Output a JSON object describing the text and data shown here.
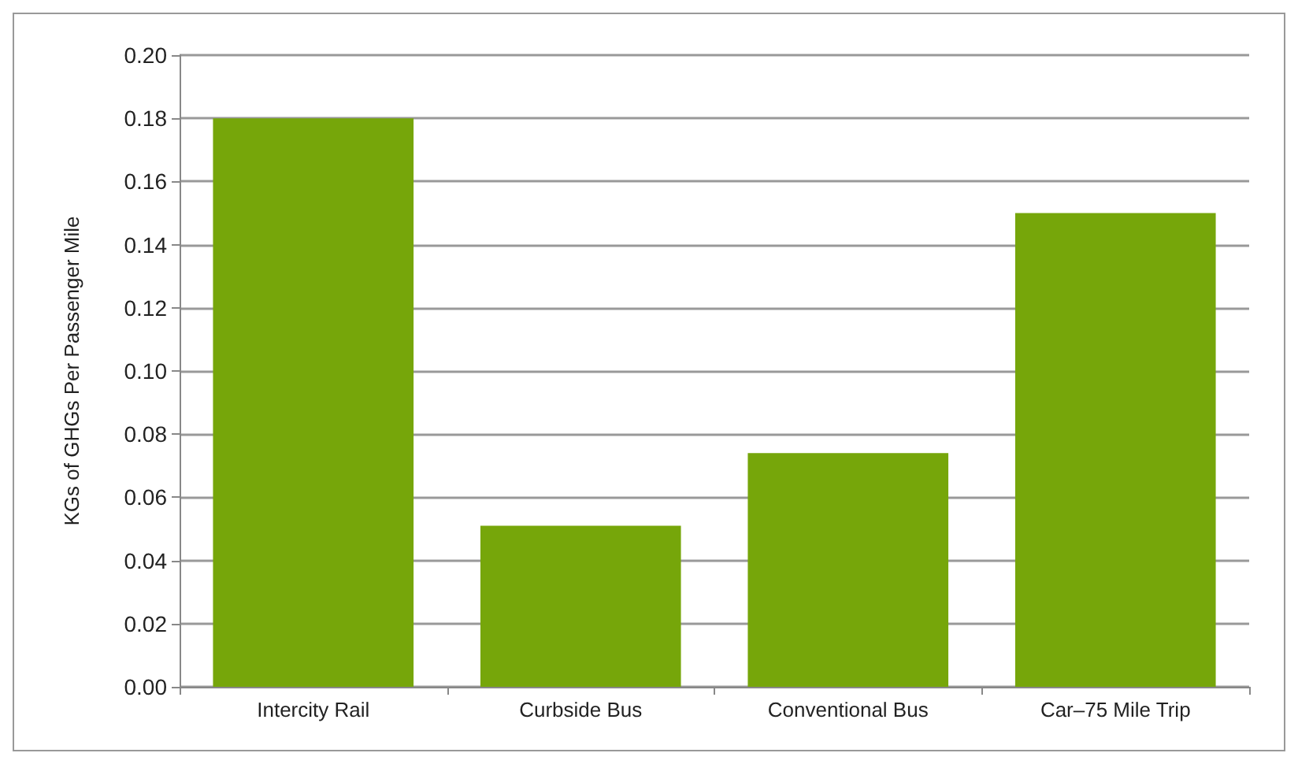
{
  "chart_data": {
    "type": "bar",
    "ylabel": "KGs of GHGs Per Passenger Mile",
    "categories": [
      "Intercity Rail",
      "Curbside Bus",
      "Conventional Bus",
      "Car–75 Mile Trip"
    ],
    "values": [
      0.18,
      0.051,
      0.074,
      0.15
    ],
    "color": "#76a60a",
    "ylim": [
      0,
      0.2
    ],
    "yticks": [
      {
        "value": 0,
        "label": "0.00"
      },
      {
        "value": 0.02,
        "label": "0.02"
      },
      {
        "value": 0.04,
        "label": "0.04"
      },
      {
        "value": 0.06,
        "label": "0.06"
      },
      {
        "value": 0.08,
        "label": "0.08"
      },
      {
        "value": 0.1,
        "label": "0.10"
      },
      {
        "value": 0.12,
        "label": "0.12"
      },
      {
        "value": 0.14,
        "label": "0.14"
      },
      {
        "value": 0.16,
        "label": "0.16"
      },
      {
        "value": 0.18,
        "label": "0.18"
      },
      {
        "value": 0.2,
        "label": "0.20"
      }
    ],
    "grid": "y"
  }
}
